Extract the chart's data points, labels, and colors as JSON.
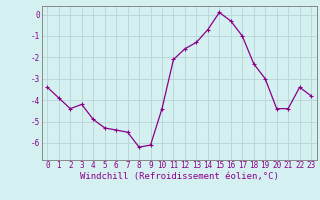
{
  "x": [
    0,
    1,
    2,
    3,
    4,
    5,
    6,
    7,
    8,
    9,
    10,
    11,
    12,
    13,
    14,
    15,
    16,
    17,
    18,
    19,
    20,
    21,
    22,
    23
  ],
  "y": [
    -3.4,
    -3.9,
    -4.4,
    -4.2,
    -4.9,
    -5.3,
    -5.4,
    -5.5,
    -6.2,
    -6.1,
    -4.4,
    -2.1,
    -1.6,
    -1.3,
    -0.7,
    0.1,
    -0.3,
    -1.0,
    -2.3,
    -3.0,
    -4.4,
    -4.4,
    -3.4,
    -3.8
  ],
  "line_color": "#8B008B",
  "marker": "+",
  "marker_size": 3,
  "marker_lw": 0.8,
  "line_width": 0.9,
  "bg_color": "#d4f0f0",
  "grid_color": "#b8d4d4",
  "xlabel": "Windchill (Refroidissement éolien,°C)",
  "ylabel": "",
  "ylim": [
    -6.8,
    0.4
  ],
  "xlim": [
    -0.5,
    23.5
  ],
  "yticks": [
    0,
    -1,
    -2,
    -3,
    -4,
    -5,
    -6
  ],
  "ytick_labels": [
    "0",
    "-1",
    "-2",
    "-3",
    "-4",
    "-5",
    "-6"
  ],
  "xticks": [
    0,
    1,
    2,
    3,
    4,
    5,
    6,
    7,
    8,
    9,
    10,
    11,
    12,
    13,
    14,
    15,
    16,
    17,
    18,
    19,
    20,
    21,
    22,
    23
  ],
  "tick_label_fontsize": 5.5,
  "xlabel_fontsize": 6.5,
  "spine_color": "#888888",
  "tick_color": "#8B008B",
  "label_color": "#8B008B"
}
